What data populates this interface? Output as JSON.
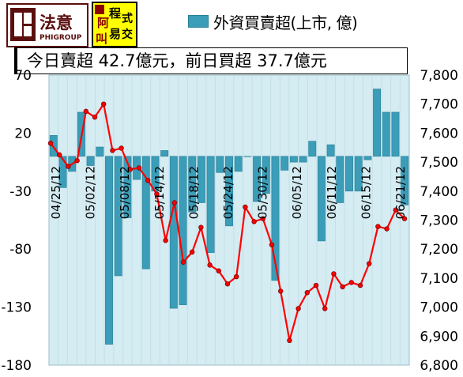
{
  "logo_left": {
    "text": "法意",
    "subtext": "PHIGROUP"
  },
  "logo_right": {
    "chars": [
      "阿",
      "程",
      "式",
      "叫",
      "易",
      "交"
    ]
  },
  "legend": {
    "label": "外資買賣超(上市, 億)",
    "color": "#3b9db8"
  },
  "summary": {
    "text": "今日賣超 42.7億元，前日買超 37.7億元"
  },
  "chart_data": {
    "type": "bar+line",
    "series": [
      {
        "name": "外資買賣超(上市, 億)",
        "type": "bar",
        "axis": "left",
        "values": [
          18,
          -27,
          -13,
          38,
          -8,
          8,
          -162,
          -103,
          -53,
          -20,
          -97,
          -30,
          5,
          -131,
          -128,
          -48,
          -40,
          -83,
          -14,
          -60,
          -13,
          0,
          -39,
          -32,
          -107,
          -12,
          -5,
          -5,
          13,
          -73,
          10,
          -40,
          -30,
          -30,
          -3,
          58,
          38,
          38,
          -42
        ]
      },
      {
        "type": "line",
        "axis": "right",
        "color": "#ff0000",
        "values": [
          7565,
          7525,
          7485,
          7505,
          7675,
          7655,
          7700,
          7540,
          7548,
          7475,
          7480,
          7437,
          7390,
          7230,
          7360,
          7155,
          7190,
          7275,
          7145,
          7125,
          7080,
          7105,
          7345,
          7295,
          7305,
          7215,
          7055,
          6885,
          6995,
          7050,
          7075,
          6995,
          7115,
          7070,
          7085,
          7075,
          7150,
          7278,
          7270,
          7335,
          7305
        ]
      }
    ],
    "x_tick_labels": [
      "04/25/12",
      "05/02/12",
      "05/08/12",
      "05/14/12",
      "05/18/12",
      "05/24/12",
      "05/30/12",
      "06/05/12",
      "06/11/12",
      "06/15/12",
      "06/21/12"
    ],
    "y_left": {
      "min": -180,
      "max": 70,
      "ticks": [
        70,
        20,
        -30,
        -80,
        -130,
        -180
      ]
    },
    "y_right": {
      "min": 6800,
      "max": 7800,
      "ticks": [
        "7,800",
        "7,700",
        "7,600",
        "7,500",
        "7,400",
        "7,300",
        "7,200",
        "7,100",
        "7,000",
        "6,900",
        "6,800"
      ]
    },
    "plot_background": "#d4ecf2"
  }
}
